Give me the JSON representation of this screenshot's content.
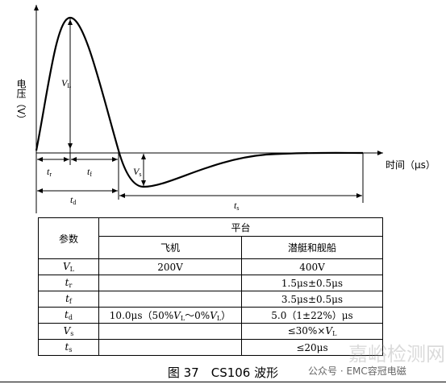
{
  "diagram": {
    "y_axis_label": "电压（V）",
    "x_axis_label": "时间（μs）",
    "labels": [
      [
        {
          "i": "V"
        },
        {
          "sub": "L"
        }
      ],
      [
        {
          "i": "t"
        },
        {
          "sub": "r"
        }
      ],
      [
        {
          "i": "t"
        },
        {
          "sub": "f"
        }
      ],
      [
        {
          "i": "V"
        },
        {
          "sub": "s"
        }
      ],
      [
        {
          "i": "t"
        },
        {
          "sub": "d"
        }
      ],
      [
        {
          "i": "t"
        },
        {
          "sub": "s"
        }
      ]
    ]
  },
  "table": {
    "header": [
      "参数",
      "平台",
      "飞机",
      "潜艇和舰船"
    ],
    "rows": [
      [
        [
          {
            "i": "V"
          },
          {
            "sub": "L"
          }
        ],
        [
          "200V"
        ],
        [
          "400V"
        ]
      ],
      [
        [
          {
            "i": "t"
          },
          {
            "sub": "r"
          }
        ],
        [],
        [
          "1.5μs±0.5μs"
        ]
      ],
      [
        [
          {
            "i": "t"
          },
          {
            "sub": "f"
          }
        ],
        [],
        [
          "3.5μs±0.5μs"
        ]
      ],
      [
        [
          {
            "i": "t"
          },
          {
            "sub": "d"
          }
        ],
        [
          "10.0μs（50%",
          {
            "i": "V"
          },
          {
            "sub": "L"
          },
          "～0%",
          {
            "i": "V"
          },
          {
            "sub": "L"
          },
          "）"
        ],
        [
          "5.0（1±22%）μs"
        ]
      ],
      [
        [
          {
            "i": "V"
          },
          {
            "sub": "s"
          }
        ],
        [],
        [
          "≤30%×",
          {
            "i": "V"
          },
          {
            "sub": "L"
          }
        ]
      ],
      [
        [
          {
            "i": "t"
          },
          {
            "sub": "s"
          }
        ],
        [],
        [
          "≤20μs"
        ]
      ]
    ]
  },
  "caption": "图 37　CS106 波形",
  "watermark": "公众号 · EMC容冠电磁",
  "watermark_site": "嘉峪检测网"
}
